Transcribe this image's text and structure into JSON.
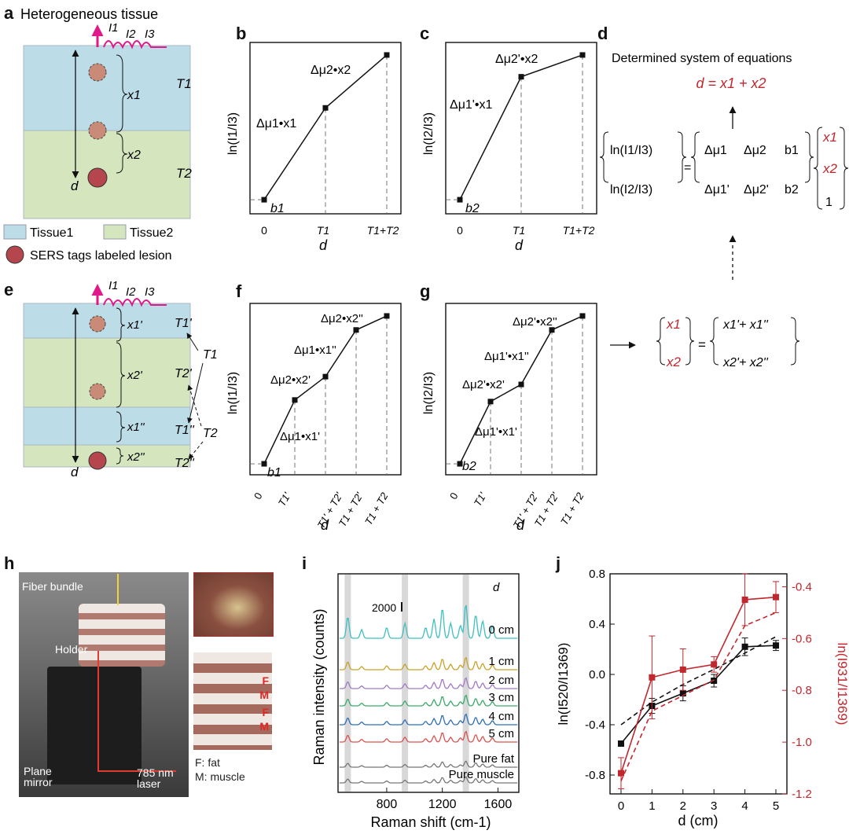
{
  "panel_labels": {
    "a": "a",
    "b": "b",
    "c": "c",
    "d": "d",
    "e": "e",
    "f": "f",
    "g": "g",
    "h": "h",
    "i": "i",
    "j": "j"
  },
  "panel_a": {
    "title": "Heterogeneous tissue",
    "intensities": [
      "I1",
      "I2",
      "I3"
    ],
    "x1": "x1",
    "x2": "x2",
    "T1": "T1",
    "T2": "T2",
    "d": "d",
    "legend": {
      "tissue1": "Tissue1",
      "tissue2": "Tissue2",
      "sers": "SERS tags labeled lesion"
    },
    "colors": {
      "tissue1": "#bcdce8",
      "tissue2": "#d5e6be",
      "sers": "#b5464d",
      "arrow": "#e0188a"
    }
  },
  "panel_b": {
    "ylabel": "ln(I1/I3)",
    "xlabel": "d",
    "xticks": [
      "0",
      "T1",
      "T1+T2"
    ],
    "intercept": "b1",
    "seg1": "Δμ1•x1",
    "seg2": "Δμ2•x2",
    "points": [
      [
        0,
        0.04
      ],
      [
        1,
        0.63
      ],
      [
        2,
        0.97
      ]
    ]
  },
  "panel_c": {
    "ylabel": "ln(I2/I3)",
    "xlabel": "d",
    "xticks": [
      "0",
      "T1",
      "T1+T2"
    ],
    "intercept": "b2",
    "seg1": "Δμ1'•x1",
    "seg2": "Δμ2'•x2",
    "points": [
      [
        0,
        0.04
      ],
      [
        1,
        0.83
      ],
      [
        2,
        0.97
      ]
    ]
  },
  "panel_d": {
    "title": "Determined system of equations",
    "result": "d = x1 + x2",
    "lhs": [
      "ln(I1/I3)",
      "ln(I2/I3)"
    ],
    "matrix": [
      [
        "Δμ1",
        "Δμ2",
        "b1"
      ],
      [
        "Δμ1'",
        "Δμ2'",
        "b2"
      ]
    ],
    "vector": [
      "x1",
      "x2",
      "1"
    ]
  },
  "panel_e": {
    "intensities": [
      "I1",
      "I2",
      "I3"
    ],
    "layers": [
      "x1'",
      "x2'",
      "x1''",
      "x2''"
    ],
    "labels": [
      "T1'",
      "T2'",
      "T1''",
      "T2''"
    ],
    "group_T1": "T1",
    "group_T2": "T2",
    "d": "d"
  },
  "panel_f": {
    "ylabel": "ln(I1/I3)",
    "xlabel": "d",
    "xticks": [
      "0",
      "T1'",
      "T1' + T2'",
      "T1 + T2'",
      "T1 + T2"
    ],
    "intercept": "b1",
    "segs": [
      "Δμ1•x1'",
      "Δμ2•x2'",
      "Δμ1•x1''",
      "Δμ2•x2''"
    ],
    "points": [
      [
        0,
        0.02
      ],
      [
        1,
        0.43
      ],
      [
        2,
        0.58
      ],
      [
        3,
        0.88
      ],
      [
        4,
        0.97
      ]
    ]
  },
  "panel_g": {
    "ylabel": "ln(I2/I3)",
    "xlabel": "d",
    "xticks": [
      "0",
      "T1'",
      "T1' + T2'",
      "T1 + T2'",
      "T1 + T2"
    ],
    "intercept": "b2",
    "segs": [
      "Δμ1'•x1'",
      "Δμ2'•x2'",
      "Δμ1'•x1''",
      "Δμ2'•x2''"
    ],
    "points": [
      [
        0,
        0.02
      ],
      [
        1,
        0.42
      ],
      [
        2,
        0.53
      ],
      [
        3,
        0.88
      ],
      [
        4,
        0.97
      ]
    ]
  },
  "panel_result": {
    "lhs": [
      "x1",
      "x2"
    ],
    "rhs": [
      "x1'+ x1''",
      "x2'+ x2''"
    ]
  },
  "panel_h": {
    "fiber": "Fiber bundle",
    "holder": "Holder",
    "mirror": "Plane mirror",
    "laser": "785 nm laser",
    "layer_tags": [
      "F",
      "M",
      "F",
      "M"
    ],
    "legend_fat": "F: fat",
    "legend_muscle": "M: muscle"
  },
  "chart_data": [
    {
      "type": "line",
      "panel": "i",
      "xlabel": "Raman shift (cm-1)",
      "ylabel": "Raman intensity (counts)",
      "xticks": [
        800,
        1200,
        1600
      ],
      "xlim": [
        450,
        1750
      ],
      "scale_bar": "2000",
      "legend_title": "d",
      "highlight_bands": [
        520,
        931,
        1369
      ],
      "series": [
        {
          "name": "0 cm",
          "color": "#3fbfbf"
        },
        {
          "name": "1 cm",
          "color": "#c8a227"
        },
        {
          "name": "2 cm",
          "color": "#a07ac8"
        },
        {
          "name": "3 cm",
          "color": "#3aaa6a"
        },
        {
          "name": "4 cm",
          "color": "#2e6fb5"
        },
        {
          "name": "5 cm",
          "color": "#d9534f"
        },
        {
          "name": "Pure fat",
          "color": "#777777"
        },
        {
          "name": "Pure muscle",
          "color": "#777777"
        }
      ]
    },
    {
      "type": "line",
      "panel": "j",
      "xlabel": "d (cm)",
      "ylabel": "ln(I520/I1369)",
      "ylabel_right": "ln(I931/I1369)",
      "x": [
        0,
        1,
        2,
        3,
        4,
        5
      ],
      "ylim": [
        -0.95,
        0.8
      ],
      "yticks": [
        -0.8,
        -0.4,
        0,
        0.4,
        0.8
      ],
      "ylim_right": [
        -1.2,
        -0.35
      ],
      "yticks_right": [
        -1.2,
        -1.0,
        -0.8,
        -0.6,
        -0.4
      ],
      "series": [
        {
          "name": "ln(I520/I1369)",
          "axis": "left",
          "color": "#111111",
          "values": [
            -0.55,
            -0.25,
            -0.15,
            -0.05,
            0.22,
            0.23
          ],
          "errors": [
            0.02,
            0.06,
            0.06,
            0.05,
            0.07,
            0.04
          ],
          "fit": [
            -0.4,
            -0.22,
            -0.08,
            0.04,
            0.17,
            0.3
          ]
        },
        {
          "name": "ln(I931/I1369)",
          "axis": "right",
          "color": "#c1272d",
          "values": [
            -1.12,
            -0.75,
            -0.72,
            -0.7,
            -0.45,
            -0.44
          ],
          "errors": [
            0.06,
            0.16,
            0.08,
            0.03,
            0.1,
            0.06
          ],
          "fit": [
            -1.15,
            -0.88,
            -0.82,
            -0.76,
            -0.55,
            -0.5
          ]
        }
      ]
    }
  ]
}
